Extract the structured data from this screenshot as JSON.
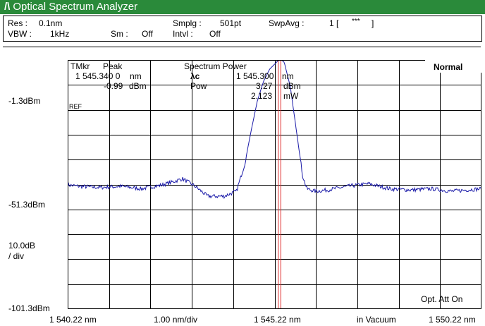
{
  "window": {
    "logo": "/\\",
    "title": "Optical Spectrum Analyzer",
    "title_bar_color": "#2a8a3a"
  },
  "settings": {
    "res_label": "Res :",
    "res_value": "0.1nm",
    "vbw_label": "VBW :",
    "vbw_value": "1kHz",
    "smplg_label": "Smplg :",
    "smplg_value": "501pt",
    "swpavg_label": "SwpAvg :",
    "swpavg_value": "1 [",
    "swpavg_stars": "***",
    "swpavg_close": "]",
    "sm_label": "Sm :",
    "sm_value": "Off",
    "intvl_label": "Intvl :",
    "intvl_value": "Off"
  },
  "marker": {
    "tmkr_label": "TMkr",
    "peak_label": "Peak",
    "wavelength": "1 545.340 0",
    "wavelength_unit": "nm",
    "level": "-0.99",
    "level_unit": "dBm"
  },
  "spectrum_power": {
    "title": "Spectrum Power",
    "lambda_label": "λc",
    "lambda_value": "1 545.300",
    "lambda_unit": "nm",
    "pow_label": "Pow",
    "pow_dbm": "3.27",
    "pow_dbm_unit": "dBm",
    "pow_mw": "2.123",
    "pow_mw_unit": "mW"
  },
  "mode": "Normal",
  "y_axis": {
    "top_label": "-1.3dBm",
    "ref_label": "REF",
    "mid_label": "-51.3dBm",
    "scale_label": "10.0dB",
    "scale_unit": "/ div",
    "bottom_label": "-101.3dBm"
  },
  "x_axis": {
    "start": "1 540.22 nm",
    "span": "1.00 nm/div",
    "center": "1 545.22 nm",
    "medium": "in Vacuum",
    "stop": "1 550.22 nm"
  },
  "opt_att": "Opt. Att On",
  "colors": {
    "trace": "#1a1aa8",
    "marker_line": "#e03030",
    "grid": "#000000"
  },
  "chart_data": {
    "type": "line",
    "x_unit": "nm",
    "y_unit": "dBm",
    "xlim": [
      1540.22,
      1550.22
    ],
    "ylim": [
      -101.3,
      -1.3
    ],
    "marker_x": 1545.34,
    "grid": true,
    "x": [
      1540.22,
      1540.5,
      1541.0,
      1541.5,
      1542.0,
      1542.5,
      1543.0,
      1543.3,
      1543.6,
      1544.0,
      1544.3,
      1544.5,
      1544.65,
      1544.8,
      1544.95,
      1545.1,
      1545.25,
      1545.34,
      1545.45,
      1545.6,
      1545.75,
      1545.9,
      1546.0,
      1546.2,
      1546.5,
      1547.0,
      1547.5,
      1548.0,
      1548.5,
      1549.0,
      1549.5,
      1550.22
    ],
    "y": [
      -51.5,
      -52.0,
      -52.5,
      -52.0,
      -53.0,
      -51.5,
      -49.0,
      -52.0,
      -56.0,
      -56.0,
      -54.0,
      -43.0,
      -30.0,
      -18.0,
      -10.0,
      -5.0,
      -2.5,
      -1.0,
      -2.0,
      -12.0,
      -30.0,
      -48.0,
      -53.0,
      -54.0,
      -53.5,
      -52.0,
      -51.0,
      -53.0,
      -53.5,
      -53.0,
      -54.0,
      -53.0
    ]
  }
}
